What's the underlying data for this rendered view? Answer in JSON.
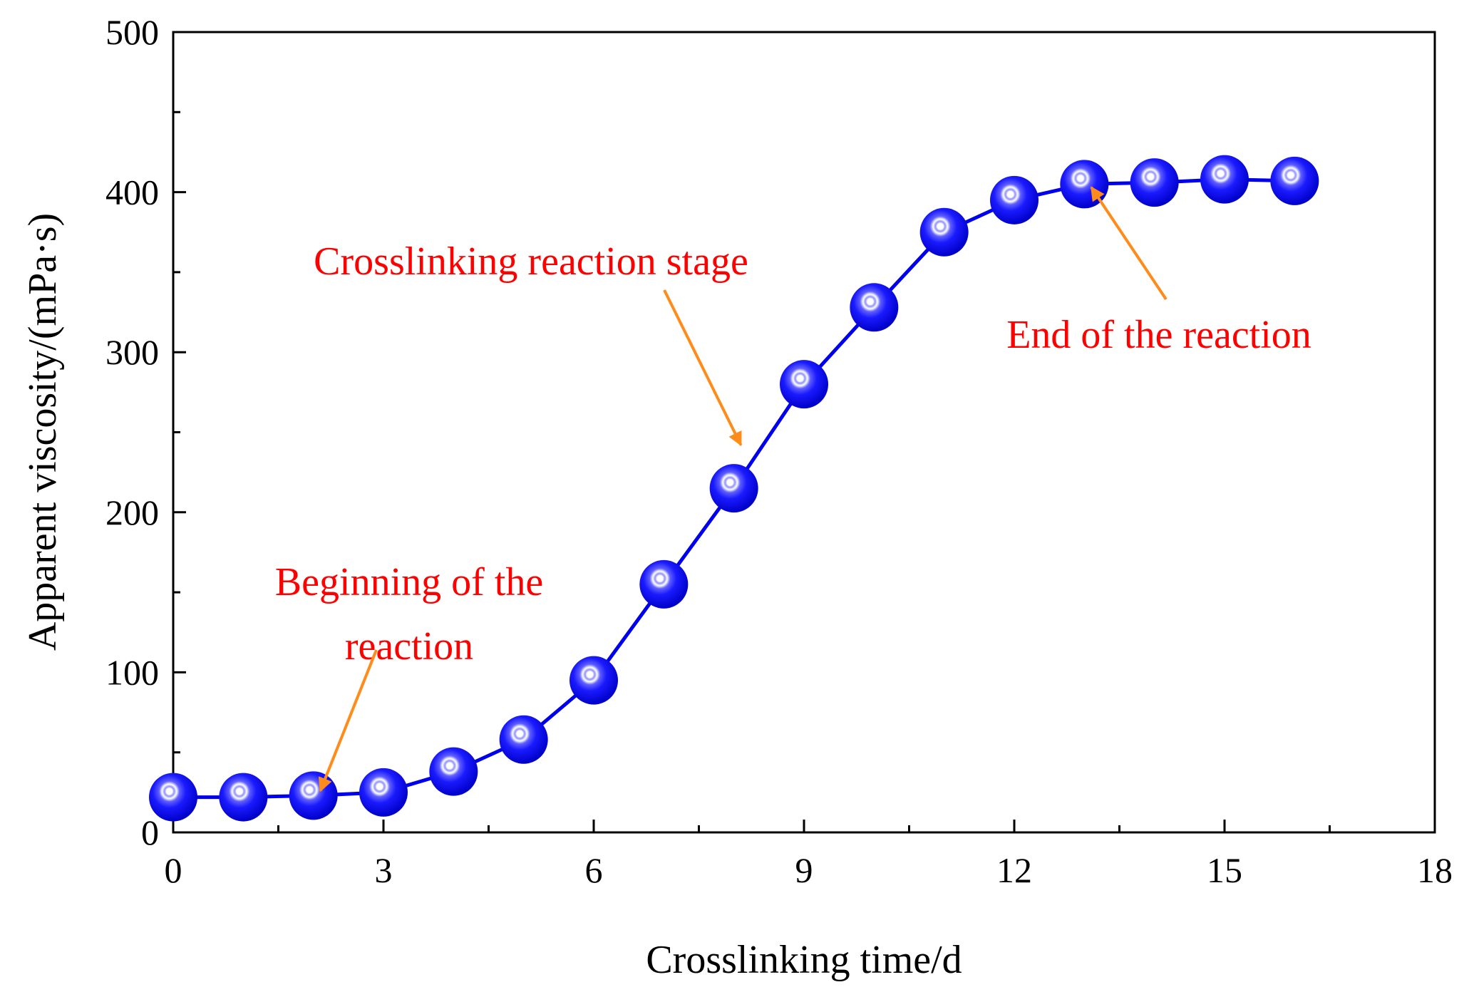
{
  "chart_data": {
    "type": "line",
    "title": "",
    "xlabel": "Crosslinking time/d",
    "ylabel": "Apparent viscosity/(mPa·s)",
    "xlim": [
      0,
      18
    ],
    "ylim": [
      0,
      500
    ],
    "xticks": [
      0,
      3,
      6,
      9,
      12,
      15,
      18
    ],
    "yticks": [
      0,
      100,
      200,
      300,
      400,
      500
    ],
    "grid": false,
    "series": [
      {
        "name": "Apparent viscosity",
        "color": "#0000ee",
        "marker": "sphere",
        "x": [
          0,
          1,
          2,
          3,
          4,
          5,
          6,
          7,
          8,
          9,
          10,
          11,
          12,
          13,
          14,
          15,
          16
        ],
        "y": [
          22,
          22,
          23,
          25,
          38,
          58,
          95,
          155,
          215,
          280,
          328,
          375,
          395,
          405,
          406,
          408,
          407
        ]
      }
    ],
    "annotations": [
      {
        "id": "annot-beginning",
        "lines": [
          "Beginning of the",
          "reaction"
        ],
        "color": "#ff0000",
        "arrow_color": "#ff8c1a",
        "arrow_target": [
          2.1,
          26
        ]
      },
      {
        "id": "annot-crosslinking",
        "lines": [
          "Crosslinking reaction stage"
        ],
        "color": "#ff0000",
        "arrow_color": "#ff8c1a",
        "arrow_target": [
          8.1,
          242
        ]
      },
      {
        "id": "annot-end",
        "lines": [
          "End of the reaction"
        ],
        "color": "#ff0000",
        "arrow_color": "#ff8c1a",
        "arrow_target": [
          13.1,
          403
        ]
      }
    ]
  }
}
